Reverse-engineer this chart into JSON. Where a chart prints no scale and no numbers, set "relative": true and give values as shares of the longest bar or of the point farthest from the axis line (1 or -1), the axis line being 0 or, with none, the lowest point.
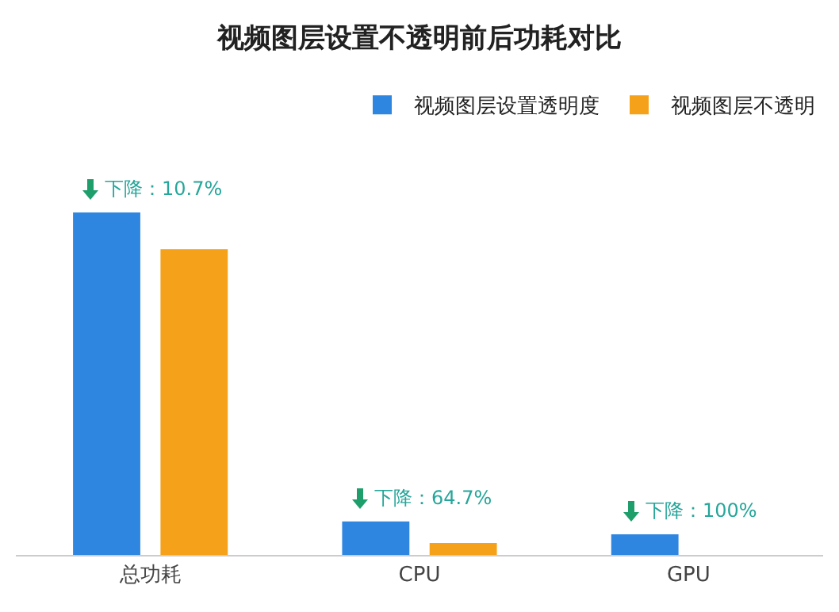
{
  "chart_data": {
    "type": "bar",
    "title": "视频图层设置不透明前后功耗对比",
    "relative": true,
    "categories": [
      "总功耗",
      "CPU",
      "GPU"
    ],
    "series": [
      {
        "name": "视频图层设置透明度",
        "color": "#2f86e0",
        "values": [
          1,
          0.098,
          0.06
        ]
      },
      {
        "name": "视频图层不透明",
        "color": "#f5a21a",
        "values": [
          0.893,
          0.035,
          0
        ]
      }
    ],
    "annotations": [
      "下降：10.7%",
      "下降：64.7%",
      "下降：100%"
    ],
    "legend": "top right"
  }
}
